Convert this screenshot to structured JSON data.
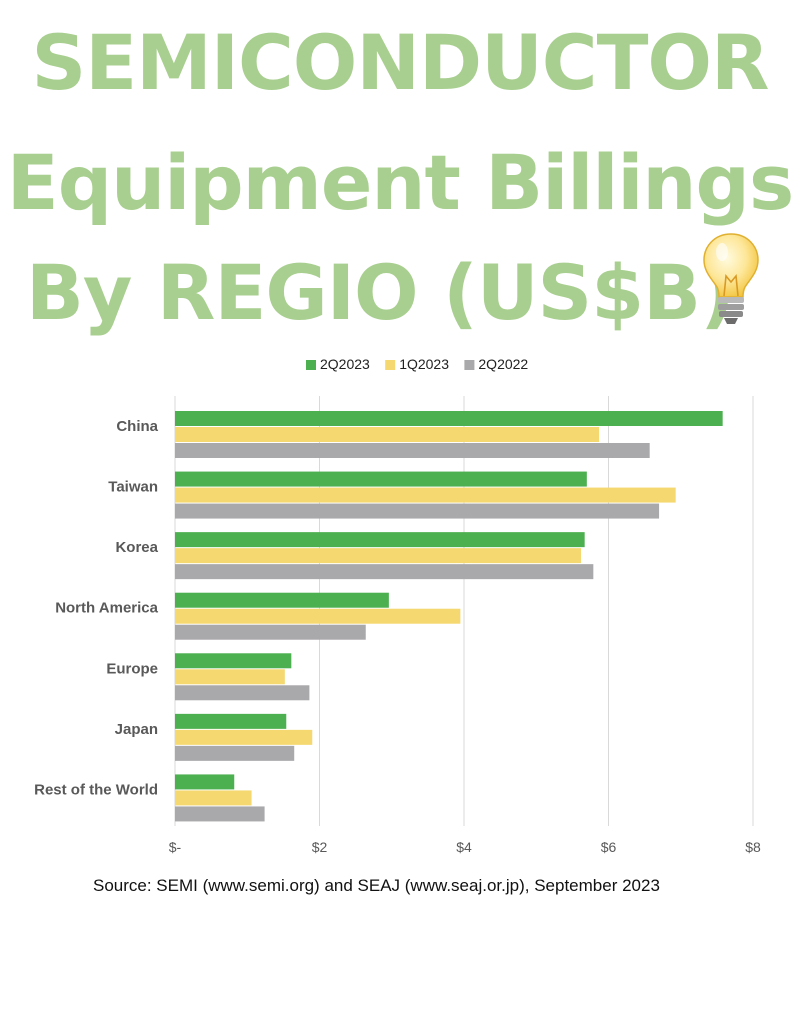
{
  "title": {
    "line1": "SEMICONDUCTOR",
    "line2": "Equipment Billings",
    "line3": "By REGIO (US$B)",
    "icon": "light-bulb-icon",
    "color": "#a8cf8f"
  },
  "chart_data": {
    "type": "bar",
    "orientation": "horizontal",
    "categories": [
      "China",
      "Taiwan",
      "Korea",
      "North America",
      "Europe",
      "Japan",
      "Rest of the World"
    ],
    "series": [
      {
        "name": "2Q2023",
        "color": "#4caf50",
        "values": [
          7.58,
          5.7,
          5.67,
          2.96,
          1.61,
          1.54,
          0.82
        ]
      },
      {
        "name": "1Q2023",
        "color": "#f5d870",
        "values": [
          5.87,
          6.93,
          5.62,
          3.95,
          1.52,
          1.9,
          1.06
        ]
      },
      {
        "name": "2Q2022",
        "color": "#a9a8ab",
        "values": [
          6.57,
          6.7,
          5.79,
          2.64,
          1.86,
          1.65,
          1.24
        ]
      }
    ],
    "xlim": [
      0,
      8
    ],
    "xticks": [
      0,
      2,
      4,
      6,
      8
    ],
    "xtick_labels": [
      "$-",
      "$2",
      "$4",
      "$6",
      "$8"
    ],
    "grid": "vertical",
    "legend": "top",
    "xlabel": "",
    "ylabel": ""
  },
  "source": "Source: SEMI (www.semi.org) and SEAJ (www.seaj.or.jp), September 2023"
}
